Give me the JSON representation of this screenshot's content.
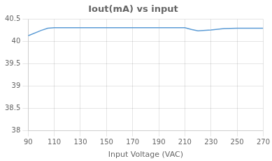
{
  "chart_data": {
    "type": "line",
    "title": "Iout(mA) vs input",
    "x_label": "Input Voltage (VAC)",
    "x": [
      90,
      100,
      105,
      110,
      120,
      130,
      140,
      150,
      160,
      170,
      180,
      190,
      200,
      210,
      215,
      220,
      230,
      240,
      250,
      260,
      265,
      270
    ],
    "values": [
      40.13,
      40.25,
      40.3,
      40.31,
      40.31,
      40.31,
      40.31,
      40.31,
      40.31,
      40.31,
      40.31,
      40.31,
      40.31,
      40.31,
      40.27,
      40.24,
      40.26,
      40.29,
      40.3,
      40.3,
      40.3,
      40.3
    ],
    "color": "#5b9bd5",
    "xlim": [
      90,
      270
    ],
    "xticks": [
      90,
      110,
      130,
      150,
      170,
      190,
      210,
      230,
      250,
      270
    ],
    "ylim": [
      38,
      40.5
    ],
    "yticks": [
      38,
      38.5,
      39,
      39.5,
      40,
      40.5
    ],
    "grid": true
  }
}
